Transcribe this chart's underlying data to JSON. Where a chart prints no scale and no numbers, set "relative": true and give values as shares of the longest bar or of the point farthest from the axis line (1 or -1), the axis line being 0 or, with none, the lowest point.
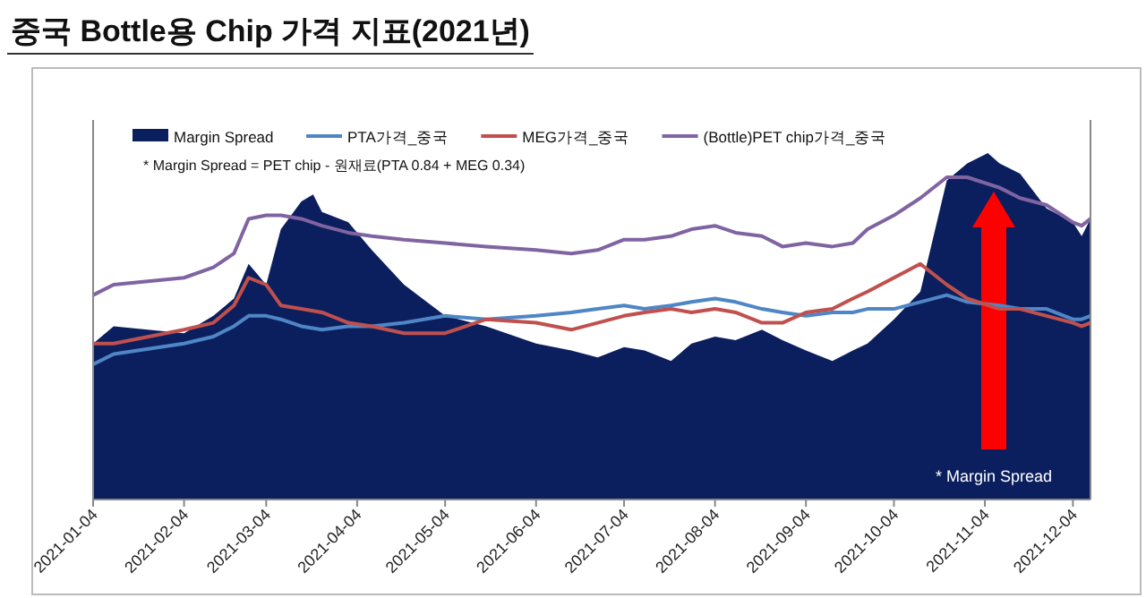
{
  "chart_data": {
    "type": "line",
    "title": "중국 Bottle용 Chip 가격 지표(2021년)",
    "relative": true,
    "tick_labels": "x",
    "legend": "top",
    "marker": "none",
    "line_style": "solid",
    "xlim": [
      "2021-01-04",
      "2021-12-10"
    ],
    "xticks": [
      "2021-01-04",
      "2021-02-04",
      "2021-03-04",
      "2021-04-04",
      "2021-05-04",
      "2021-06-04",
      "2021-07-04",
      "2021-08-04",
      "2021-09-04",
      "2021-10-04",
      "2021-11-04",
      "2021-12-04"
    ],
    "x": [
      "2021-01-04",
      "2021-01-11",
      "2021-02-04",
      "2021-02-14",
      "2021-02-21",
      "2021-02-26",
      "2021-03-04",
      "2021-03-09",
      "2021-03-16",
      "2021-03-23",
      "2021-04-01",
      "2021-04-09",
      "2021-04-20",
      "2021-05-04",
      "2021-05-18",
      "2021-06-04",
      "2021-06-16",
      "2021-06-25",
      "2021-07-04",
      "2021-07-11",
      "2021-07-20",
      "2021-07-27",
      "2021-08-04",
      "2021-08-11",
      "2021-08-20",
      "2021-08-27",
      "2021-09-04",
      "2021-09-13",
      "2021-09-20",
      "2021-09-25",
      "2021-10-04",
      "2021-10-13",
      "2021-10-22",
      "2021-10-29",
      "2021-11-09",
      "2021-11-16",
      "2021-11-25",
      "2021-12-04",
      "2021-12-07",
      "2021-12-10"
    ],
    "series": [
      {
        "name": "Margin Spread",
        "type": "area",
        "color": "#0b1f5e",
        "x": [
          "2021-01-04",
          "2021-01-11",
          "2021-02-04",
          "2021-02-14",
          "2021-02-21",
          "2021-02-26",
          "2021-03-04",
          "2021-03-09",
          "2021-03-16",
          "2021-03-20",
          "2021-03-23",
          "2021-04-01",
          "2021-04-09",
          "2021-04-20",
          "2021-05-04",
          "2021-05-18",
          "2021-06-04",
          "2021-06-16",
          "2021-06-25",
          "2021-07-04",
          "2021-07-11",
          "2021-07-20",
          "2021-07-27",
          "2021-08-04",
          "2021-08-11",
          "2021-08-20",
          "2021-08-27",
          "2021-09-04",
          "2021-09-13",
          "2021-09-20",
          "2021-09-25",
          "2021-10-04",
          "2021-10-13",
          "2021-10-22",
          "2021-10-29",
          "2021-11-05",
          "2021-11-09",
          "2021-11-16",
          "2021-11-25",
          "2021-12-04",
          "2021-12-07",
          "2021-12-10"
        ],
        "values": [
          0.45,
          0.5,
          0.48,
          0.53,
          0.58,
          0.68,
          0.62,
          0.78,
          0.86,
          0.88,
          0.83,
          0.8,
          0.72,
          0.62,
          0.53,
          0.5,
          0.45,
          0.43,
          0.41,
          0.44,
          0.43,
          0.4,
          0.45,
          0.47,
          0.46,
          0.49,
          0.46,
          0.43,
          0.4,
          0.43,
          0.45,
          0.52,
          0.6,
          0.92,
          0.97,
          1.0,
          0.97,
          0.94,
          0.84,
          0.8,
          0.76,
          0.81
        ]
      },
      {
        "name": "PTA가격_중국",
        "color": "#4f86c6",
        "values": [
          0.39,
          0.42,
          0.45,
          0.47,
          0.5,
          0.53,
          0.53,
          0.52,
          0.5,
          0.49,
          0.5,
          0.5,
          0.51,
          0.53,
          0.52,
          0.53,
          0.54,
          0.55,
          0.56,
          0.55,
          0.56,
          0.57,
          0.58,
          0.57,
          0.55,
          0.54,
          0.53,
          0.54,
          0.54,
          0.55,
          0.55,
          0.57,
          0.59,
          0.57,
          0.56,
          0.55,
          0.55,
          0.52,
          0.52,
          0.53
        ]
      },
      {
        "name": "MEG가격_중국",
        "color": "#c0504d",
        "values": [
          0.45,
          0.45,
          0.49,
          0.51,
          0.56,
          0.64,
          0.62,
          0.56,
          0.55,
          0.54,
          0.51,
          0.5,
          0.48,
          0.48,
          0.52,
          0.51,
          0.49,
          0.51,
          0.53,
          0.54,
          0.55,
          0.54,
          0.55,
          0.54,
          0.51,
          0.51,
          0.54,
          0.55,
          0.58,
          0.6,
          0.64,
          0.68,
          0.62,
          0.58,
          0.55,
          0.55,
          0.53,
          0.51,
          0.5,
          0.51
        ]
      },
      {
        "name": "(Bottle)PET chip가격_중국",
        "color": "#8064a2",
        "values": [
          0.59,
          0.62,
          0.64,
          0.67,
          0.71,
          0.81,
          0.82,
          0.82,
          0.81,
          0.79,
          0.77,
          0.76,
          0.75,
          0.74,
          0.73,
          0.72,
          0.71,
          0.72,
          0.75,
          0.75,
          0.76,
          0.78,
          0.79,
          0.77,
          0.76,
          0.73,
          0.74,
          0.73,
          0.74,
          0.78,
          0.82,
          0.87,
          0.93,
          0.93,
          0.9,
          0.87,
          0.85,
          0.8,
          0.79,
          0.81
        ]
      }
    ],
    "annotations": [
      "* Margin Spread = PET chip - 원재료(PTA 0.84 + MEG 0.34)",
      "* Margin Spread"
    ]
  }
}
